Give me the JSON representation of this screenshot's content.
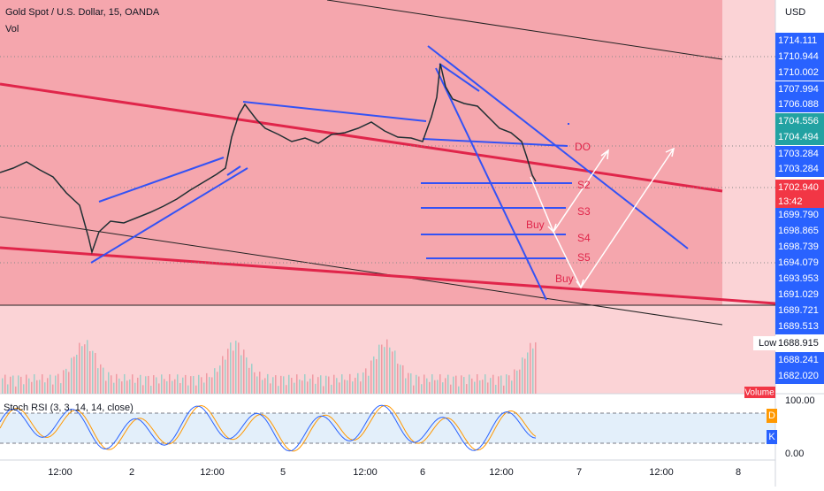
{
  "header": {
    "title": "Gold Spot / U.S. Dollar, 15, OANDA",
    "indicator": "Vol"
  },
  "price_axis": {
    "currency": "USD",
    "labels": [
      "1714.111",
      "1710.944",
      "1710.002",
      "1707.994",
      "1706.088",
      "1704.556",
      "1704.494",
      "1703.284",
      "1703.284",
      "1702.940",
      "1699.790",
      "1698.865",
      "1698.739",
      "1694.079",
      "1693.953",
      "1691.029",
      "1689.721",
      "1689.513",
      "1688.915",
      "1688.241",
      "1682.020"
    ],
    "countdown": "13:42",
    "low_label": "Low"
  },
  "annotations": {
    "levels": [
      "DO",
      "S2",
      "S3",
      "S4",
      "S5"
    ],
    "buy": [
      "Buy",
      "Buy"
    ]
  },
  "volume_tag": "Volume",
  "stoch": {
    "title": "Stoch RSI (3, 3, 14, 14, close)",
    "axis": [
      "100.00",
      "0.00"
    ],
    "legend": [
      "D",
      "K"
    ]
  },
  "time_axis": {
    "labels": [
      "12:00",
      "2",
      "12:00",
      "5",
      "12:00",
      "6",
      "12:00",
      "7",
      "12:00",
      "8"
    ]
  }
}
